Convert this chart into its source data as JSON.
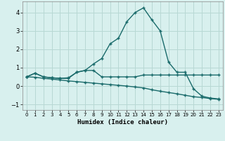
{
  "xlabel": "Humidex (Indice chaleur)",
  "bg_color": "#d8f0ee",
  "grid_color": "#b8d8d4",
  "line_color": "#1a6b6b",
  "xlim": [
    -0.5,
    23.5
  ],
  "ylim": [
    -1.3,
    4.6
  ],
  "xticks": [
    0,
    1,
    2,
    3,
    4,
    5,
    6,
    7,
    8,
    9,
    10,
    11,
    12,
    13,
    14,
    15,
    16,
    17,
    18,
    19,
    20,
    21,
    22,
    23
  ],
  "yticks": [
    -1,
    0,
    1,
    2,
    3,
    4
  ],
  "series1_x": [
    0,
    1,
    2,
    3,
    4,
    5,
    6,
    7,
    8,
    9,
    10,
    11,
    12,
    13,
    14,
    15,
    16,
    17,
    18,
    19,
    20,
    21,
    22,
    23
  ],
  "series1_y": [
    0.5,
    0.7,
    0.5,
    0.45,
    0.42,
    0.45,
    0.75,
    0.85,
    0.85,
    0.5,
    0.5,
    0.5,
    0.5,
    0.5,
    0.6,
    0.6,
    0.6,
    0.6,
    0.6,
    0.6,
    0.6,
    0.6,
    0.6,
    0.6
  ],
  "series2_x": [
    0,
    1,
    2,
    3,
    4,
    5,
    6,
    7,
    8,
    9,
    10,
    11,
    12,
    13,
    14,
    15,
    16,
    17,
    18,
    19,
    20,
    21,
    22,
    23
  ],
  "series2_y": [
    0.5,
    0.7,
    0.5,
    0.45,
    0.42,
    0.42,
    0.75,
    0.85,
    1.2,
    1.5,
    2.3,
    2.6,
    3.5,
    4.0,
    4.25,
    3.6,
    3.0,
    1.3,
    0.75,
    0.75,
    -0.15,
    -0.55,
    -0.65,
    -0.7
  ],
  "series3_x": [
    0,
    1,
    2,
    3,
    4,
    5,
    6,
    7,
    8,
    9,
    10,
    11,
    12,
    13,
    14,
    15,
    16,
    17,
    18,
    19,
    20,
    21,
    22,
    23
  ],
  "series3_y": [
    0.5,
    0.48,
    0.42,
    0.38,
    0.33,
    0.28,
    0.24,
    0.2,
    0.16,
    0.12,
    0.08,
    0.04,
    0.0,
    -0.05,
    -0.1,
    -0.2,
    -0.28,
    -0.35,
    -0.42,
    -0.5,
    -0.58,
    -0.62,
    -0.68,
    -0.72
  ]
}
